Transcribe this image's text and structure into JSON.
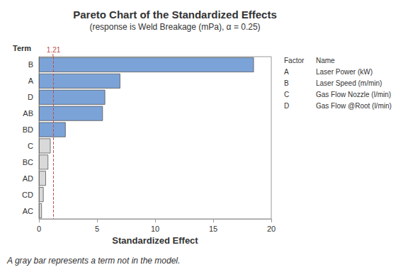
{
  "chart_data": {
    "type": "bar",
    "orientation": "horizontal",
    "title": "Pareto Chart of the Standardized Effects",
    "subtitle": "(response is Weld Breakage (mPa), α = 0.25)",
    "x_label": "Standardized Effect",
    "y_label": "Term",
    "categories": [
      "B",
      "A",
      "D",
      "AB",
      "BD",
      "C",
      "BC",
      "AD",
      "CD",
      "AC"
    ],
    "values": [
      18.5,
      7.0,
      5.7,
      5.5,
      2.3,
      1.0,
      0.8,
      0.6,
      0.4,
      0.25
    ],
    "colors": [
      "#7ba3d8",
      "#7ba3d8",
      "#7ba3d8",
      "#7ba3d8",
      "#7ba3d8",
      "#d9d9d9",
      "#d9d9d9",
      "#d9d9d9",
      "#d9d9d9",
      "#d9d9d9"
    ],
    "xlim": [
      0,
      20
    ],
    "xticks": [
      0,
      5,
      10,
      15,
      20
    ],
    "grid": false,
    "reference_line": {
      "value": 1.21,
      "label": "1.21",
      "color": "#c0504d"
    },
    "factor_table": {
      "headers": [
        "Factor",
        "Name"
      ],
      "rows": [
        [
          "A",
          "Laser Power (kW)"
        ],
        [
          "B",
          "Laser Speed (m/min)"
        ],
        [
          "C",
          "Gas Flow Nozzle (l/min)"
        ],
        [
          "D",
          "Gas Flow @Root (l/min)"
        ]
      ]
    },
    "note": "A gray bar represents a term not in the model."
  }
}
